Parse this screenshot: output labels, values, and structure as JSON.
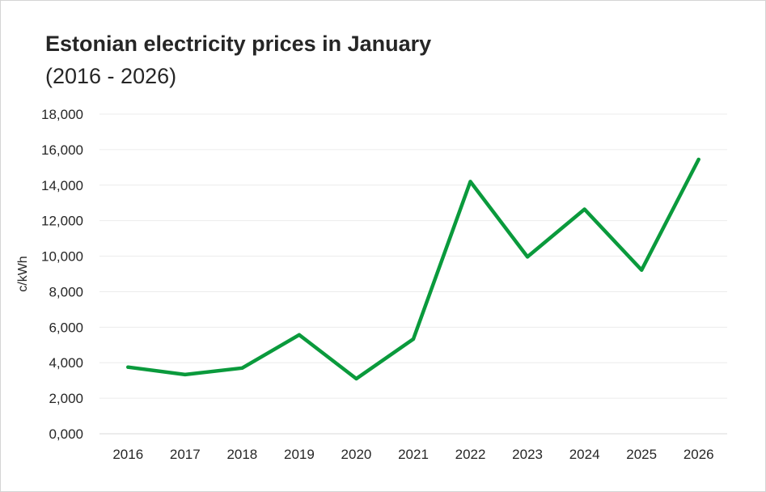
{
  "chart_data": {
    "type": "line",
    "title": "Estonian electricity prices in January",
    "subtitle": "(2016 - 2026)",
    "xlabel": "",
    "ylabel": "c/kWh",
    "categories": [
      "2016",
      "2017",
      "2018",
      "2019",
      "2020",
      "2021",
      "2022",
      "2023",
      "2024",
      "2025",
      "2026"
    ],
    "series": [
      {
        "name": "Electricity price",
        "color": "#0a9a3c",
        "values": [
          3750,
          3330,
          3700,
          5570,
          3100,
          5330,
          14200,
          9960,
          12640,
          9220,
          15450
        ]
      }
    ],
    "ylim": [
      0,
      18000
    ],
    "yticks": [
      0,
      2000,
      4000,
      6000,
      8000,
      10000,
      12000,
      14000,
      16000,
      18000
    ],
    "ytick_labels": [
      "0,000",
      "2,000",
      "4,000",
      "6,000",
      "8,000",
      "10,000",
      "12,000",
      "14,000",
      "16,000",
      "18,000"
    ],
    "grid": true,
    "legend": "none"
  }
}
